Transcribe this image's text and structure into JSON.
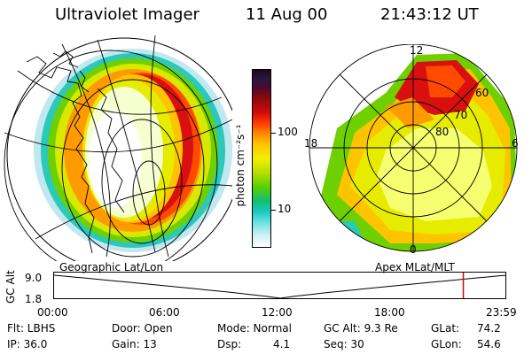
{
  "header": {
    "title": "Ultraviolet Imager",
    "date": "11 Aug 00",
    "time": "21:43:12 UT"
  },
  "colorbar": {
    "unit_label": "photon cm⁻²s⁻¹",
    "ticks": [
      "100",
      "10"
    ],
    "colors": [
      "#1a0a1a",
      "#2a1740",
      "#4b0a30",
      "#8a0a0a",
      "#d10a0a",
      "#ff3a00",
      "#ff8a00",
      "#ffc400",
      "#f2f000",
      "#b8e000",
      "#5ad000",
      "#12c070",
      "#19c8c0",
      "#6ae0e0",
      "#c8f0f0",
      "#ffffff"
    ]
  },
  "left_panel": {
    "caption": "Geographic Lat/Lon"
  },
  "right_panel": {
    "caption": "Apex MLat/MLT",
    "mlt_labels": {
      "top": "12",
      "left": "18",
      "right": "6",
      "bottom": "0"
    },
    "lat_labels": [
      "60",
      "70",
      "80"
    ]
  },
  "timeline": {
    "ylabel": "GC Alt",
    "yticks": [
      "9.0",
      "1.8"
    ],
    "xticks": [
      "00:00",
      "06:00",
      "12:00",
      "18:00",
      "23:59"
    ],
    "marker_time_hours": 21.72
  },
  "status": {
    "row1": {
      "flt": "Flt: LBHS",
      "door": "Door: Open",
      "mode": "Mode: Normal",
      "gc_alt": "GC Alt: 9.3 Re",
      "glat_label": "GLat:",
      "glat_value": "74.2"
    },
    "row2": {
      "ip": "IP: 36.0",
      "gain": "Gain: 13",
      "dsp_label": "Dsp:",
      "dsp_value": "4.1",
      "seq": "Seq: 30",
      "glon_label": "GLon:",
      "glon_value": "54.6"
    }
  }
}
